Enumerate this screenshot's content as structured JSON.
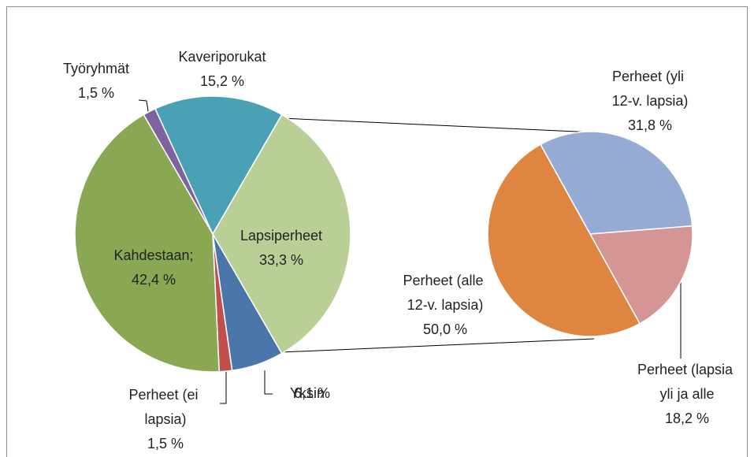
{
  "chart_data": [
    {
      "type": "pie",
      "categories": [
        "Lapsiperheet",
        "Yksin",
        "Perheet (ei lapsia)",
        "Kahdestaan;",
        "Työryhmät",
        "Kaveriporukat"
      ],
      "values": [
        33.3,
        6.1,
        1.5,
        42.4,
        1.5,
        15.2
      ],
      "value_labels": [
        "33,3 %",
        "6,1 %",
        "1,5 %",
        "42,4 %",
        "1,5 %",
        "15,2 %"
      ],
      "colors": [
        "#b9cf95",
        "#4a76aa",
        "#c0504d",
        "#8aa853",
        "#7f62a0",
        "#4aa0b5"
      ]
    },
    {
      "type": "pie",
      "categories": [
        "Perheet (yli 12-v. lapsia)",
        "Perheet (lapsia yli ja alle 12-v.)",
        "Perheet (alle 12-v. lapsia)"
      ],
      "values": [
        31.8,
        18.2,
        50.0
      ],
      "value_labels": [
        "31,8 %",
        "18,2 %",
        "50,0 %"
      ],
      "colors": [
        "#95abd4",
        "#d49594",
        "#de8641"
      ]
    }
  ]
}
